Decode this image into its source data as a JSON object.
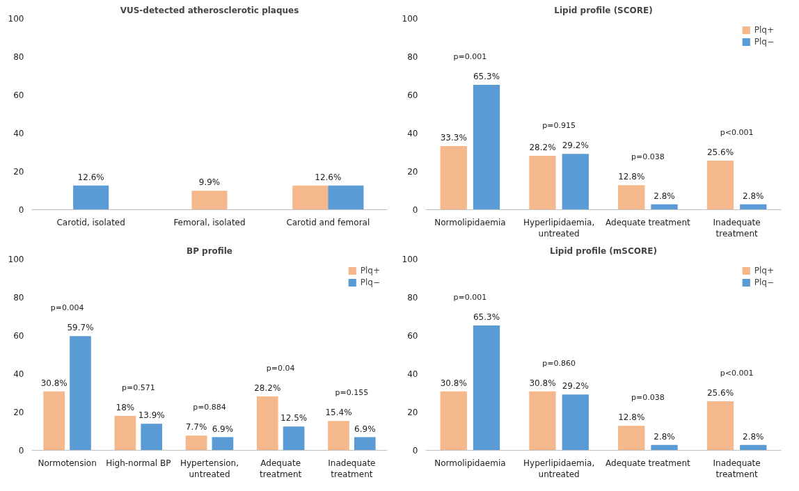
{
  "chart_data": [
    {
      "type": "bar",
      "title": "VUS-detected atherosclerotic plaques",
      "categories": [
        "Carotid, isolated",
        "Femoral, isolated",
        "Carotid and femoral"
      ],
      "series": [
        {
          "color": "#f5b88c",
          "values": [
            null,
            9.9,
            12.6
          ],
          "value_labels": [
            null,
            "9.9%",
            "12.6%"
          ]
        },
        {
          "color": "#5b9bd5",
          "values": [
            12.6,
            null,
            12.6
          ],
          "value_labels": [
            "12.6%",
            null,
            null
          ]
        }
      ],
      "ylim": [
        0,
        100
      ],
      "yticks": [
        0,
        20,
        40,
        60,
        80,
        100
      ],
      "grid": false,
      "legend": false
    },
    {
      "type": "bar",
      "title": "Lipid profile (SCORE)",
      "categories": [
        "Normolipidaemia",
        "Hyperlipidaemia,\nuntreated",
        "Adequate treatment",
        "Inadequate\ntreatment"
      ],
      "series": [
        {
          "name": "Plq+",
          "color": "#f5b88c",
          "values": [
            33.3,
            28.2,
            12.8,
            25.6
          ],
          "value_labels": [
            "33.3%",
            "28.2%",
            "12.8%",
            "25.6%"
          ]
        },
        {
          "name": "Plq−",
          "color": "#5b9bd5",
          "values": [
            65.3,
            29.2,
            2.8,
            2.8
          ],
          "value_labels": [
            "65.3%",
            "29.2%",
            "2.8%",
            "2.8%"
          ]
        }
      ],
      "annotations": [
        "p=0.001",
        "p=0.915",
        "p=0.038",
        "p<0.001"
      ],
      "ylim": [
        0,
        100
      ],
      "yticks": [
        0,
        20,
        40,
        60,
        80,
        100
      ],
      "grid": false,
      "legend": "top right"
    },
    {
      "type": "bar",
      "title": "BP profile",
      "categories": [
        "Normotension",
        "High-normal BP",
        "Hypertension,\nuntreated",
        "Adequate\ntreatment",
        "Inadequate\ntreatment"
      ],
      "series": [
        {
          "name": "Plq+",
          "color": "#f5b88c",
          "values": [
            30.8,
            18,
            7.7,
            28.2,
            15.4
          ],
          "value_labels": [
            "30.8%",
            "18%",
            "7.7%",
            "28.2%",
            "15.4%"
          ]
        },
        {
          "name": "Plq−",
          "color": "#5b9bd5",
          "values": [
            59.7,
            13.9,
            6.9,
            12.5,
            6.9
          ],
          "value_labels": [
            "59.7%",
            "13.9%",
            "6.9%",
            "12.5%",
            "6.9%"
          ]
        }
      ],
      "annotations": [
        "p=0.004",
        "p=0.571",
        "p=0.884",
        "p=0.04",
        "p=0.155"
      ],
      "ylim": [
        0,
        100
      ],
      "yticks": [
        0,
        20,
        40,
        60,
        80,
        100
      ],
      "grid": false,
      "legend": "top right"
    },
    {
      "type": "bar",
      "title": "Lipid profile (mSCORE)",
      "categories": [
        "Normolipidaemia",
        "Hyperlipidaemia,\nuntreated",
        "Adequate treatment",
        "Inadequate\ntreatment"
      ],
      "series": [
        {
          "name": "Plq+",
          "color": "#f5b88c",
          "values": [
            30.8,
            30.8,
            12.8,
            25.6
          ],
          "value_labels": [
            "30.8%",
            "30.8%",
            "12.8%",
            "25.6%"
          ]
        },
        {
          "name": "Plq−",
          "color": "#5b9bd5",
          "values": [
            65.3,
            29.2,
            2.8,
            2.8
          ],
          "value_labels": [
            "65.3%",
            "29.2%",
            "2.8%",
            "2.8%"
          ]
        }
      ],
      "annotations": [
        "p=0.001",
        "p=0.860",
        "p=0.038",
        "p<0.001"
      ],
      "ylim": [
        0,
        100
      ],
      "yticks": [
        0,
        20,
        40,
        60,
        80,
        100
      ],
      "grid": false,
      "legend": "top right"
    }
  ]
}
